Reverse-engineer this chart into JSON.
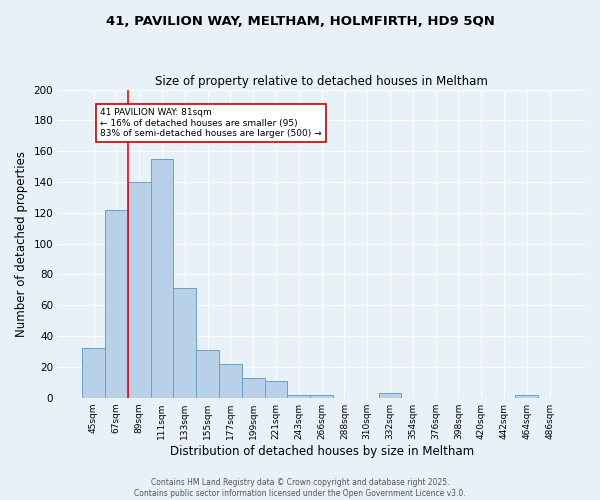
{
  "title1": "41, PAVILION WAY, MELTHAM, HOLMFIRTH, HD9 5QN",
  "title2": "Size of property relative to detached houses in Meltham",
  "xlabel": "Distribution of detached houses by size in Meltham",
  "ylabel": "Number of detached properties",
  "bar_labels": [
    "45sqm",
    "67sqm",
    "89sqm",
    "111sqm",
    "133sqm",
    "155sqm",
    "177sqm",
    "199sqm",
    "221sqm",
    "243sqm",
    "266sqm",
    "288sqm",
    "310sqm",
    "332sqm",
    "354sqm",
    "376sqm",
    "398sqm",
    "420sqm",
    "442sqm",
    "464sqm",
    "486sqm"
  ],
  "bar_values": [
    32,
    122,
    140,
    155,
    71,
    31,
    22,
    13,
    11,
    2,
    2,
    0,
    0,
    3,
    0,
    0,
    0,
    0,
    0,
    2,
    0
  ],
  "bar_color": "#b8d0e8",
  "bar_edge_color": "#6a9fc8",
  "bg_color": "#e8f0f8",
  "grid_color": "#ffffff",
  "red_line_x": 1.5,
  "annotation_text": "41 PAVILION WAY: 81sqm\n← 16% of detached houses are smaller (95)\n83% of semi-detached houses are larger (500) →",
  "annotation_box_color": "#ffffff",
  "annotation_border_color": "#cc0000",
  "footer1": "Contains HM Land Registry data © Crown copyright and database right 2025.",
  "footer2": "Contains public sector information licensed under the Open Government Licence v3.0.",
  "ylim": [
    0,
    200
  ],
  "yticks": [
    0,
    20,
    40,
    60,
    80,
    100,
    120,
    140,
    160,
    180,
    200
  ]
}
